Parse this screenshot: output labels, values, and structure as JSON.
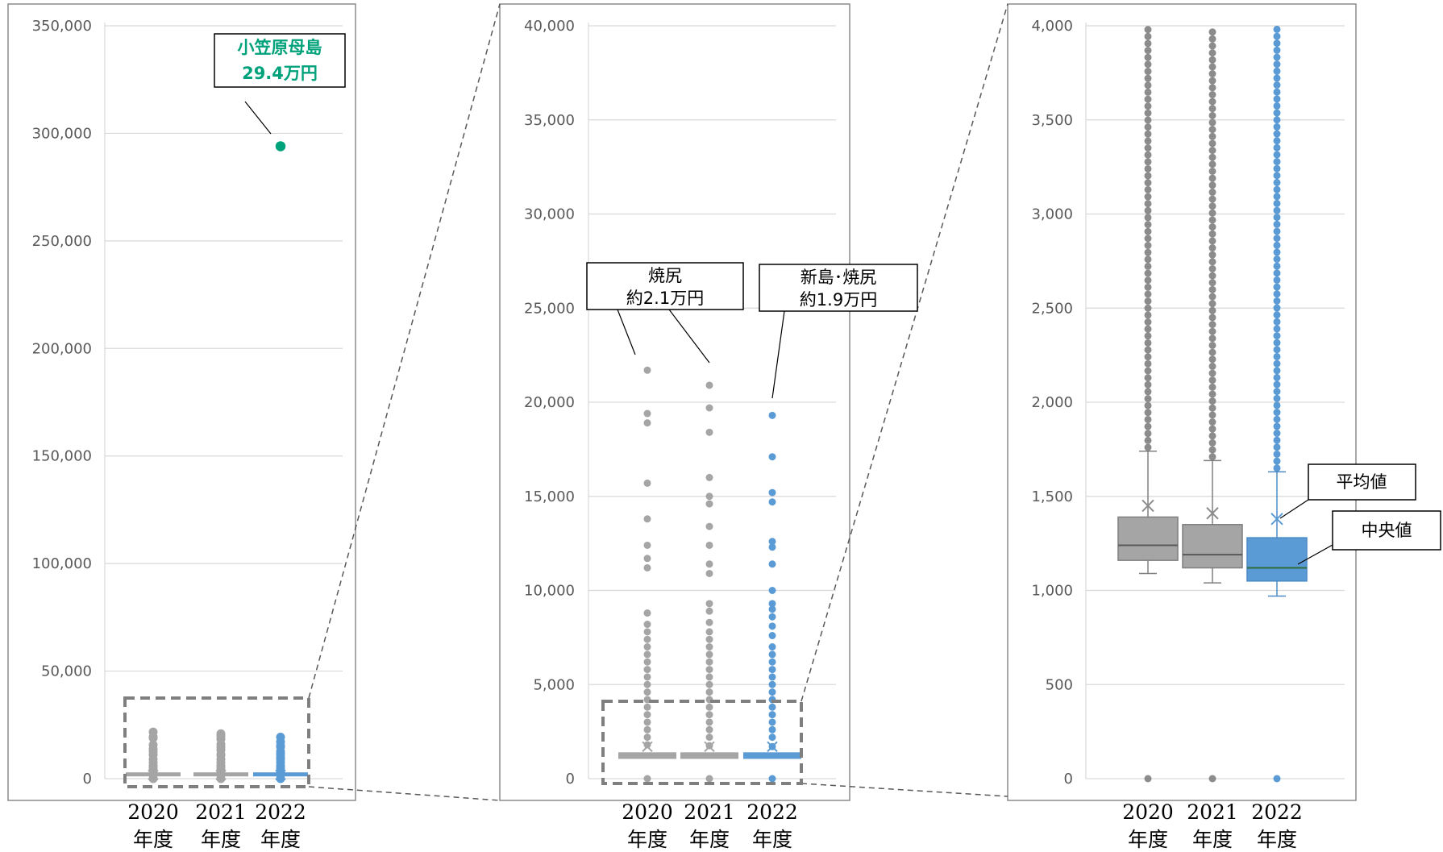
{
  "colors": {
    "gray": "#a5a5a5",
    "gray_dark": "#7f7f7f",
    "blue": "#5b9bd5",
    "green": "#00a27b",
    "grid": "#d9d9d9"
  },
  "chart_data": [
    {
      "type": "box",
      "panel": "full-range",
      "categories": [
        [
          "2020",
          "年度"
        ],
        [
          "2021",
          "年度"
        ],
        [
          "2022",
          "年度"
        ]
      ],
      "ylim": [
        0,
        350000
      ],
      "ytick_labels": [
        "0",
        "50,000",
        "100,000",
        "150,000",
        "200,000",
        "250,000",
        "300,000",
        "350,000"
      ],
      "outliers": [
        [
          0,
          1700,
          2200,
          2600,
          3000,
          4000,
          5000,
          6000,
          7500,
          9000,
          11000,
          12500,
          13800,
          15700,
          18900,
          19400,
          21700
        ],
        [
          0,
          1700,
          2200,
          2600,
          3000,
          4000,
          5000,
          6000,
          7500,
          9000,
          10900,
          11400,
          13400,
          14600,
          16000,
          18400,
          19700,
          20900
        ],
        [
          0,
          1650,
          2200,
          2600,
          3000,
          4000,
          5000,
          6000,
          7500,
          9000,
          10000,
          11400,
          12600,
          14700,
          15200,
          17100,
          19300,
          294000
        ]
      ],
      "annotation": {
        "line1": "小笠原母島",
        "line2": "29.4万円"
      }
    },
    {
      "type": "box",
      "panel": "zoom-40000",
      "categories": [
        [
          "2020",
          "年度"
        ],
        [
          "2021",
          "年度"
        ],
        [
          "2022",
          "年度"
        ]
      ],
      "ylim": [
        0,
        40000
      ],
      "ytick_labels": [
        "0",
        "5,000",
        "10,000",
        "15,000",
        "20,000",
        "25,000",
        "30,000",
        "35,000",
        "40,000"
      ],
      "outliers": [
        [
          0,
          1800,
          2200,
          2600,
          3000,
          3400,
          3800,
          4200,
          4600,
          5000,
          5400,
          5800,
          6200,
          6600,
          7000,
          7400,
          7800,
          8200,
          8800,
          11200,
          11700,
          12400,
          13800,
          15700,
          18900,
          19400,
          21700
        ],
        [
          0,
          1750,
          2200,
          2600,
          3000,
          3400,
          3800,
          4200,
          4600,
          5000,
          5400,
          5800,
          6200,
          6600,
          7000,
          7400,
          7800,
          8300,
          8900,
          9300,
          10900,
          11400,
          12400,
          13400,
          14600,
          15000,
          16000,
          18400,
          19700,
          20900
        ],
        [
          0,
          1700,
          2200,
          2600,
          3000,
          3400,
          3800,
          4200,
          4600,
          5000,
          5400,
          5800,
          6200,
          6600,
          7000,
          7600,
          8100,
          8600,
          9000,
          9300,
          10000,
          11400,
          12300,
          12600,
          14700,
          15200,
          17100,
          19300
        ]
      ],
      "annotations": [
        {
          "line1": "焼尻",
          "line2": "約2.1万円"
        },
        {
          "line1": "新島･焼尻",
          "line2": "約1.9万円"
        }
      ]
    },
    {
      "type": "box",
      "panel": "zoom-4000",
      "categories": [
        [
          "2020",
          "年度"
        ],
        [
          "2021",
          "年度"
        ],
        [
          "2022",
          "年度"
        ]
      ],
      "ylim": [
        0,
        4000
      ],
      "ytick_labels": [
        "0",
        "500",
        "1,000",
        "1,500",
        "2,000",
        "2,500",
        "3,000",
        "3,500",
        "4,000"
      ],
      "boxes": [
        {
          "min": 1090,
          "q1": 1160,
          "median": 1240,
          "q3": 1390,
          "max": 1740,
          "mean": 1450
        },
        {
          "min": 1040,
          "q1": 1120,
          "median": 1190,
          "q3": 1350,
          "max": 1690,
          "mean": 1410
        },
        {
          "min": 970,
          "q1": 1050,
          "median": 1120,
          "q3": 1280,
          "max": 1630,
          "mean": 1380
        }
      ],
      "outliers_from": [
        1760,
        1710,
        1650
      ],
      "labels": {
        "mean": "平均値",
        "median": "中央値"
      }
    }
  ]
}
